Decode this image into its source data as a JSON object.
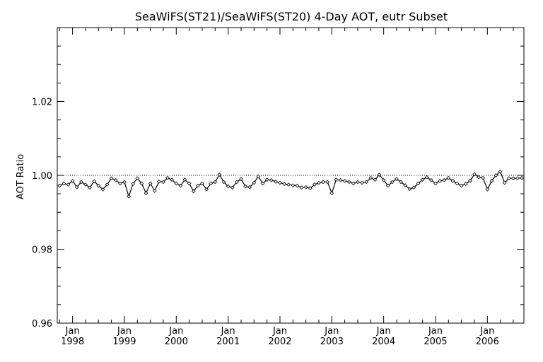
{
  "chart_data": {
    "type": "line",
    "title": "SeaWiFS(ST21)/SeaWiFS(ST20) 4-Day AOT, eutr Subset",
    "ylabel": "AOT Ratio",
    "xlabel": "",
    "ylim": [
      0.96,
      1.04
    ],
    "xlim": [
      "1997-09-15",
      "2006-09-15"
    ],
    "yticks": [
      0.96,
      0.98,
      1.0,
      1.02
    ],
    "ytick_labels": [
      "0.96",
      "0.98",
      "1.00",
      "1.02"
    ],
    "reference_line": 1.0,
    "x_month_labels": [
      "Jan",
      "Jan",
      "Jan",
      "Jan",
      "Jan",
      "Jan",
      "Jan",
      "Jan",
      "Jan"
    ],
    "x_year_labels": [
      "1998",
      "1999",
      "2000",
      "2001",
      "2002",
      "2003",
      "2004",
      "2005",
      "2006"
    ],
    "grid": false,
    "series": [
      {
        "marker": "diamond",
        "x": [
          "1997-10-01",
          "1997-11-01",
          "1997-12-01",
          "1998-01-01",
          "1998-02-01",
          "1998-03-01",
          "1998-04-01",
          "1998-05-01",
          "1998-06-01",
          "1998-07-01",
          "1998-08-01",
          "1998-09-01",
          "1998-10-01",
          "1998-11-01",
          "1998-12-01",
          "1999-01-01",
          "1999-02-01",
          "1999-03-01",
          "1999-04-01",
          "1999-05-01",
          "1999-06-01",
          "1999-07-01",
          "1999-08-01",
          "1999-09-01",
          "1999-10-01",
          "1999-11-01",
          "1999-12-01",
          "2000-01-01",
          "2000-02-01",
          "2000-03-01",
          "2000-04-01",
          "2000-05-01",
          "2000-06-01",
          "2000-07-01",
          "2000-08-01",
          "2000-09-01",
          "2000-10-01",
          "2000-11-01",
          "2000-12-01",
          "2001-01-01",
          "2001-02-01",
          "2001-03-01",
          "2001-04-01",
          "2001-05-01",
          "2001-06-01",
          "2001-07-01",
          "2001-08-01",
          "2001-09-01",
          "2001-10-01",
          "2001-11-01",
          "2001-12-01",
          "2002-01-01",
          "2002-02-01",
          "2002-03-01",
          "2002-04-01",
          "2002-05-01",
          "2002-06-01",
          "2002-07-01",
          "2002-08-01",
          "2002-09-01",
          "2002-10-01",
          "2002-11-01",
          "2002-12-01",
          "2003-01-01",
          "2003-02-01",
          "2003-03-01",
          "2003-04-01",
          "2003-05-01",
          "2003-06-01",
          "2003-07-01",
          "2003-08-01",
          "2003-09-01",
          "2003-10-01",
          "2003-11-01",
          "2003-12-01",
          "2004-01-01",
          "2004-02-01",
          "2004-03-01",
          "2004-04-01",
          "2004-05-01",
          "2004-06-01",
          "2004-07-01",
          "2004-08-01",
          "2004-09-01",
          "2004-10-01",
          "2004-11-01",
          "2004-12-01",
          "2005-01-01",
          "2005-02-01",
          "2005-03-01",
          "2005-04-01",
          "2005-05-01",
          "2005-06-01",
          "2005-07-01",
          "2005-08-01",
          "2005-09-01",
          "2005-10-01",
          "2005-11-01",
          "2005-12-01",
          "2006-01-01",
          "2006-02-01",
          "2006-03-01",
          "2006-04-01",
          "2006-05-01",
          "2006-06-01",
          "2006-07-01",
          "2006-08-01",
          "2006-09-01"
        ],
        "values": [
          0.9972,
          0.9978,
          0.9975,
          0.9985,
          0.9968,
          0.9982,
          0.9975,
          0.9967,
          0.9984,
          0.9972,
          0.9962,
          0.9975,
          0.9992,
          0.9987,
          0.9978,
          0.9982,
          0.9943,
          0.9977,
          0.9992,
          0.9978,
          0.9952,
          0.9978,
          0.9958,
          0.9983,
          0.9982,
          0.9993,
          0.9988,
          0.9978,
          0.9972,
          0.9988,
          0.9978,
          0.9957,
          0.9972,
          0.9978,
          0.9962,
          0.9978,
          0.9982,
          1.0002,
          0.9982,
          0.997,
          0.9967,
          0.9982,
          0.999,
          0.997,
          0.9968,
          0.998,
          0.9997,
          0.9978,
          0.9988,
          0.9987,
          0.9983,
          0.998,
          0.9977,
          0.9975,
          0.9973,
          0.9972,
          0.9967,
          0.9968,
          0.9965,
          0.9975,
          0.998,
          0.9982,
          0.9982,
          0.9952,
          0.9988,
          0.9987,
          0.9985,
          0.9982,
          0.9978,
          0.9982,
          0.998,
          0.9982,
          0.9993,
          0.9988,
          1.0002,
          0.9987,
          0.9972,
          0.9982,
          0.999,
          0.9982,
          0.9973,
          0.9963,
          0.9967,
          0.9978,
          0.9988,
          0.9995,
          0.9987,
          0.9978,
          0.9985,
          0.9987,
          0.9993,
          0.9985,
          0.9978,
          0.9972,
          0.9977,
          0.9985,
          1.0003,
          0.9995,
          0.9993,
          0.9962,
          0.9985,
          1.0,
          1.001,
          0.998,
          0.9992,
          0.9992,
          0.9992,
          0.9993
        ]
      }
    ]
  }
}
